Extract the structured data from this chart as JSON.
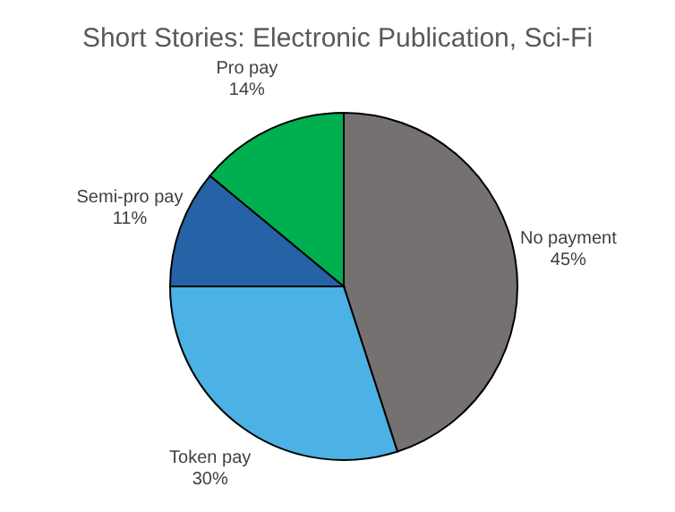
{
  "chart_data": {
    "type": "pie",
    "title": "Short Stories: Electronic Publication, Sci-Fi",
    "categories": [
      "No payment",
      "Token pay",
      "Semi-pro pay",
      "Pro pay"
    ],
    "values": [
      45,
      30,
      11,
      14
    ],
    "colors": [
      "#767171",
      "#4cb1e4",
      "#2563a6",
      "#00b050"
    ],
    "value_labels": [
      "45%",
      "30%",
      "11%",
      "14%"
    ]
  }
}
